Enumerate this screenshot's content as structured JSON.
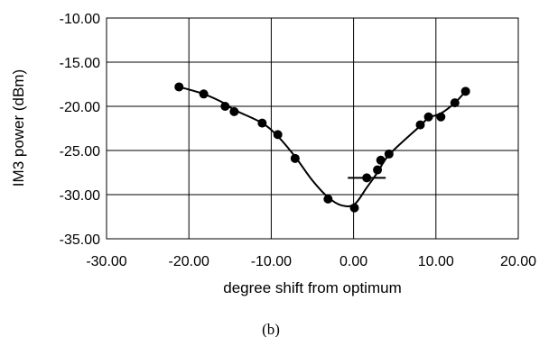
{
  "chart_data": {
    "type": "scatter",
    "xlabel": "degree shift from optimum",
    "ylabel": "IM3 power (dBm)",
    "xlim": [
      -30,
      20
    ],
    "ylim": [
      -35,
      -10
    ],
    "x_tick_labels": [
      "-30.00",
      "-20.00",
      "-10.00",
      "0.00",
      "10.00",
      "20.00"
    ],
    "y_tick_labels": [
      "-10.00",
      "-15.00",
      "-20.00",
      "-25.00",
      "-30.00",
      "-35.00"
    ],
    "x_ticks": [
      -30,
      -20,
      -10,
      0,
      10,
      20
    ],
    "y_ticks": [
      -10,
      -15,
      -20,
      -25,
      -30,
      -35
    ],
    "grid": true,
    "marker_color": "#000000",
    "series": [
      {
        "points": [
          [
            -21.2,
            -17.8
          ],
          [
            -18.2,
            -18.6
          ],
          [
            -15.6,
            -20.0
          ],
          [
            -14.5,
            -20.6
          ],
          [
            -11.1,
            -21.9
          ],
          [
            -9.2,
            -23.2
          ],
          [
            -7.1,
            -25.9
          ],
          [
            -3.1,
            -30.5
          ],
          [
            0.1,
            -31.5
          ],
          [
            1.6,
            -28.1
          ],
          [
            2.9,
            -27.2
          ],
          [
            3.3,
            -26.1
          ],
          [
            4.3,
            -25.4
          ],
          [
            8.1,
            -22.1
          ],
          [
            9.1,
            -21.2
          ],
          [
            10.6,
            -21.2
          ],
          [
            12.3,
            -19.6
          ],
          [
            13.6,
            -18.3
          ]
        ],
        "trend": [
          [
            -21.2,
            -17.8
          ],
          [
            -18.2,
            -18.6
          ],
          [
            -15.6,
            -19.7
          ],
          [
            -14.5,
            -20.4
          ],
          [
            -11.1,
            -21.9
          ],
          [
            -9.2,
            -23.4
          ],
          [
            -7.1,
            -25.7
          ],
          [
            -5.0,
            -28.4
          ],
          [
            -3.1,
            -30.3
          ],
          [
            -1.5,
            -31.2
          ],
          [
            0.1,
            -31.1
          ],
          [
            1.6,
            -29.2
          ],
          [
            2.9,
            -27.5
          ],
          [
            4.3,
            -25.5
          ],
          [
            8.1,
            -22.2
          ],
          [
            9.1,
            -21.3
          ],
          [
            10.6,
            -20.8
          ],
          [
            12.3,
            -19.6
          ],
          [
            13.6,
            -18.3
          ]
        ],
        "error_bar": {
          "x": 1.6,
          "y": -28.1,
          "half_width": 2.3
        }
      }
    ]
  },
  "caption": "(b)"
}
